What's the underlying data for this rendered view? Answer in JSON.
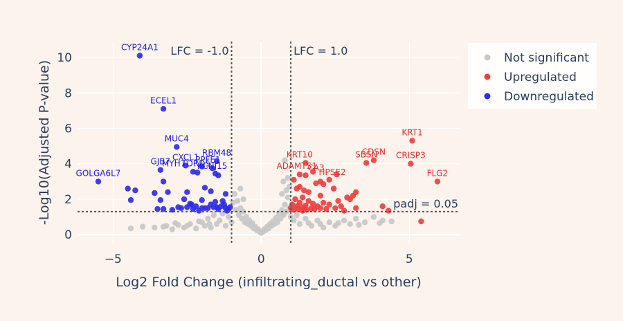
{
  "chart_data": {
    "type": "scatter",
    "xlabel": "Log2 Fold Change (infiltrating_ductal vs other)",
    "ylabel": "-Log10(Adjusted P-value)",
    "xlim": [
      -6.2,
      6.7
    ],
    "ylim": [
      -0.5,
      10.9
    ],
    "x_ticks": [
      -5,
      0,
      5
    ],
    "y_ticks": [
      0,
      2,
      4,
      6,
      8,
      10
    ],
    "grid": true,
    "reference_lines": {
      "vertical": [
        {
          "x": -1.0,
          "label": "LFC = -1.0"
        },
        {
          "x": 1.0,
          "label": "LFC = 1.0"
        }
      ],
      "horizontal": [
        {
          "y": 1.3,
          "label": "padj = 0.05"
        }
      ]
    },
    "legend_position": "top-right",
    "series": [
      {
        "name": "Not significant",
        "color": "#c8c8c8",
        "points": [
          [
            -4.4,
            0.35
          ],
          [
            -4.0,
            0.45
          ],
          [
            -3.6,
            0.4
          ],
          [
            -3.2,
            0.5
          ],
          [
            -3.0,
            0.3
          ],
          [
            -2.8,
            0.55
          ],
          [
            -2.6,
            0.4
          ],
          [
            -2.4,
            0.6
          ],
          [
            -2.2,
            0.35
          ],
          [
            -2.0,
            0.7
          ],
          [
            -1.9,
            0.5
          ],
          [
            -1.8,
            0.9
          ],
          [
            -1.7,
            0.4
          ],
          [
            -1.6,
            1.1
          ],
          [
            -1.5,
            0.6
          ],
          [
            -1.4,
            0.8
          ],
          [
            -1.3,
            1.2
          ],
          [
            -1.2,
            0.5
          ],
          [
            -1.1,
            1.0
          ],
          [
            -1.0,
            0.7
          ],
          [
            -0.95,
            1.8
          ],
          [
            -0.9,
            2.3
          ],
          [
            -0.85,
            1.4
          ],
          [
            -0.8,
            1.9
          ],
          [
            -0.75,
            1.1
          ],
          [
            -0.7,
            1.5
          ],
          [
            -0.65,
            0.9
          ],
          [
            -0.6,
            1.3
          ],
          [
            -0.55,
            0.7
          ],
          [
            -0.5,
            1.0
          ],
          [
            -0.45,
            0.6
          ],
          [
            -0.4,
            0.8
          ],
          [
            -0.35,
            0.5
          ],
          [
            -0.3,
            0.65
          ],
          [
            -0.25,
            0.35
          ],
          [
            -0.2,
            0.45
          ],
          [
            -0.15,
            0.25
          ],
          [
            -0.1,
            0.3
          ],
          [
            -0.05,
            0.15
          ],
          [
            0.0,
            0.1
          ],
          [
            0.05,
            0.15
          ],
          [
            0.1,
            0.3
          ],
          [
            0.15,
            0.25
          ],
          [
            0.2,
            0.45
          ],
          [
            0.25,
            0.35
          ],
          [
            0.3,
            0.6
          ],
          [
            0.35,
            0.5
          ],
          [
            0.4,
            0.75
          ],
          [
            0.45,
            0.6
          ],
          [
            0.5,
            0.95
          ],
          [
            0.55,
            0.7
          ],
          [
            0.6,
            1.2
          ],
          [
            0.65,
            0.9
          ],
          [
            0.7,
            1.4
          ],
          [
            0.75,
            1.1
          ],
          [
            0.8,
            1.7
          ],
          [
            0.85,
            1.3
          ],
          [
            0.9,
            2.1
          ],
          [
            0.95,
            1.5
          ],
          [
            0.9,
            3.2
          ],
          [
            0.8,
            4.2
          ],
          [
            0.95,
            2.7
          ],
          [
            0.85,
            2.5
          ],
          [
            1.0,
            1.0
          ],
          [
            1.1,
            0.8
          ],
          [
            1.2,
            1.1
          ],
          [
            1.3,
            0.6
          ],
          [
            1.5,
            0.9
          ],
          [
            1.7,
            0.5
          ],
          [
            1.9,
            0.8
          ],
          [
            2.1,
            0.4
          ],
          [
            2.3,
            0.7
          ],
          [
            2.5,
            0.5
          ],
          [
            2.8,
            0.8
          ],
          [
            3.0,
            0.6
          ],
          [
            3.2,
            0.9
          ],
          [
            3.5,
            0.7
          ],
          [
            3.8,
            1.0
          ],
          [
            4.1,
            0.8
          ],
          [
            4.4,
            0.75
          ],
          [
            -3.3,
            0.45
          ],
          [
            -2.9,
            0.65
          ],
          [
            -2.5,
            0.5
          ],
          [
            -2.1,
            0.75
          ],
          [
            -1.75,
            0.6
          ],
          [
            1.6,
            0.65
          ],
          [
            2.0,
            0.6
          ],
          [
            2.6,
            0.65
          ],
          [
            3.3,
            0.55
          ],
          [
            4.0,
            0.65
          ],
          [
            -0.6,
            2.0
          ],
          [
            -0.7,
            2.6
          ],
          [
            0.7,
            2.3
          ],
          [
            0.75,
            3.0
          ]
        ]
      },
      {
        "name": "Upregulated",
        "color": "#ef3f3f",
        "points": [
          [
            1.0,
            1.5
          ],
          [
            1.05,
            1.7
          ],
          [
            1.1,
            1.4
          ],
          [
            1.15,
            2.0
          ],
          [
            1.2,
            1.6
          ],
          [
            1.25,
            1.45
          ],
          [
            1.3,
            1.8
          ],
          [
            1.35,
            1.55
          ],
          [
            1.4,
            2.1
          ],
          [
            1.45,
            1.5
          ],
          [
            1.5,
            1.65
          ],
          [
            1.55,
            1.4
          ],
          [
            1.6,
            1.9
          ],
          [
            1.7,
            1.5
          ],
          [
            1.75,
            1.75
          ],
          [
            1.8,
            1.45
          ],
          [
            1.9,
            1.6
          ],
          [
            2.0,
            1.5
          ],
          [
            2.1,
            1.8
          ],
          [
            2.2,
            1.45
          ],
          [
            2.3,
            1.7
          ],
          [
            2.5,
            1.5
          ],
          [
            2.7,
            1.6
          ],
          [
            2.9,
            2.1
          ],
          [
            3.1,
            2.2
          ],
          [
            3.2,
            1.5
          ],
          [
            1.2,
            2.6
          ],
          [
            1.3,
            2.7
          ],
          [
            1.45,
            2.5
          ],
          [
            1.6,
            2.4
          ],
          [
            1.85,
            2.9
          ],
          [
            2.0,
            2.2
          ],
          [
            2.1,
            2.85
          ],
          [
            2.45,
            2.6
          ],
          [
            2.6,
            1.9
          ],
          [
            1.1,
            3.1
          ],
          [
            1.3,
            3.4
          ],
          [
            1.5,
            3.35
          ],
          [
            1.75,
            3.55
          ],
          [
            2.0,
            3.0
          ],
          [
            2.3,
            3.1
          ],
          [
            2.55,
            3.4
          ],
          [
            1.5,
            4.05
          ],
          [
            3.2,
            2.4
          ],
          [
            3.0,
            2.0
          ],
          [
            1.4,
            1.35
          ],
          [
            2.8,
            1.35
          ],
          [
            4.1,
            1.6
          ],
          [
            4.3,
            1.35
          ],
          [
            5.4,
            0.75
          ],
          [
            3.55,
            4.05
          ],
          [
            3.8,
            4.2
          ],
          [
            5.1,
            5.3
          ],
          [
            5.05,
            4.0
          ],
          [
            5.95,
            3.0
          ]
        ]
      },
      {
        "name": "Downregulated",
        "color": "#2e2ee8",
        "points": [
          [
            -4.1,
            10.1
          ],
          [
            -3.3,
            7.1
          ],
          [
            -2.85,
            4.95
          ],
          [
            -1.5,
            4.15
          ],
          [
            -2.55,
            3.9
          ],
          [
            -3.4,
            3.65
          ],
          [
            -2.0,
            3.85
          ],
          [
            -1.65,
            3.75
          ],
          [
            -1.55,
            3.45
          ],
          [
            -1.45,
            3.35
          ],
          [
            -2.15,
            3.5
          ],
          [
            -2.3,
            3.55
          ],
          [
            -5.5,
            3.0
          ],
          [
            -3.3,
            3.0
          ],
          [
            -4.25,
            2.5
          ],
          [
            -4.5,
            2.6
          ],
          [
            -3.6,
            2.35
          ],
          [
            -3.15,
            2.4
          ],
          [
            -2.5,
            2.4
          ],
          [
            -1.9,
            2.65
          ],
          [
            -1.7,
            2.45
          ],
          [
            -1.2,
            2.3
          ],
          [
            -4.4,
            1.95
          ],
          [
            -3.4,
            1.95
          ],
          [
            -2.6,
            2.0
          ],
          [
            -2.4,
            1.75
          ],
          [
            -2.0,
            1.95
          ],
          [
            -1.55,
            1.85
          ],
          [
            -1.3,
            1.9
          ],
          [
            -3.5,
            1.45
          ],
          [
            -3.3,
            1.45
          ],
          [
            -3.0,
            1.4
          ],
          [
            -2.7,
            1.5
          ],
          [
            -2.5,
            1.55
          ],
          [
            -2.3,
            1.45
          ],
          [
            -2.2,
            1.6
          ],
          [
            -2.0,
            1.5
          ],
          [
            -1.8,
            1.5
          ],
          [
            -1.6,
            1.55
          ],
          [
            -1.45,
            1.45
          ],
          [
            -1.35,
            1.6
          ],
          [
            -1.2,
            1.5
          ],
          [
            -1.1,
            1.45
          ],
          [
            -1.05,
            1.55
          ],
          [
            -1.15,
            1.35
          ],
          [
            -2.1,
            1.35
          ],
          [
            -2.8,
            1.55
          ],
          [
            -1.7,
            1.7
          ],
          [
            -1.25,
            1.7
          ],
          [
            -1.9,
            1.5
          ],
          [
            -2.35,
            1.7
          ],
          [
            -1.5,
            1.55
          ]
        ]
      }
    ],
    "annotations": [
      {
        "text": "CYP24A1",
        "x": -4.1,
        "y": 10.1,
        "group": "down"
      },
      {
        "text": "ECEL1",
        "x": -3.3,
        "y": 7.1,
        "group": "down"
      },
      {
        "text": "MUC4",
        "x": -2.85,
        "y": 4.95,
        "group": "down"
      },
      {
        "text": "RBM48",
        "x": -1.5,
        "y": 4.15,
        "group": "down"
      },
      {
        "text": "GJB7",
        "x": -3.4,
        "y": 3.65,
        "group": "down"
      },
      {
        "text": "CXCL1",
        "x": -2.55,
        "y": 3.9,
        "group": "down"
      },
      {
        "text": "TDRD1",
        "x": -2.2,
        "y": 3.55,
        "group": "down"
      },
      {
        "text": "PPFE1",
        "x": -1.8,
        "y": 3.75,
        "group": "down"
      },
      {
        "text": "MYH7",
        "x": -2.95,
        "y": 3.55,
        "group": "down"
      },
      {
        "text": "KCNJ15",
        "x": -1.65,
        "y": 3.4,
        "group": "down"
      },
      {
        "text": "GOLGA6L7",
        "x": -5.5,
        "y": 3.0,
        "group": "down"
      },
      {
        "text": "KRT10",
        "x": 1.3,
        "y": 4.05,
        "group": "up"
      },
      {
        "text": "ADAMTS1",
        "x": 1.2,
        "y": 3.4,
        "group": "up"
      },
      {
        "text": "CA3",
        "x": 1.85,
        "y": 3.3,
        "group": "up"
      },
      {
        "text": "HPSE2",
        "x": 2.4,
        "y": 3.05,
        "group": "up"
      },
      {
        "text": "CDSN",
        "x": 3.8,
        "y": 4.2,
        "group": "up"
      },
      {
        "text": "SBSN",
        "x": 3.55,
        "y": 4.05,
        "group": "up"
      },
      {
        "text": "KRT1",
        "x": 5.1,
        "y": 5.3,
        "group": "up"
      },
      {
        "text": "CRISP3",
        "x": 5.05,
        "y": 4.0,
        "group": "up"
      },
      {
        "text": "FLG2",
        "x": 5.95,
        "y": 3.0,
        "group": "up"
      }
    ]
  }
}
